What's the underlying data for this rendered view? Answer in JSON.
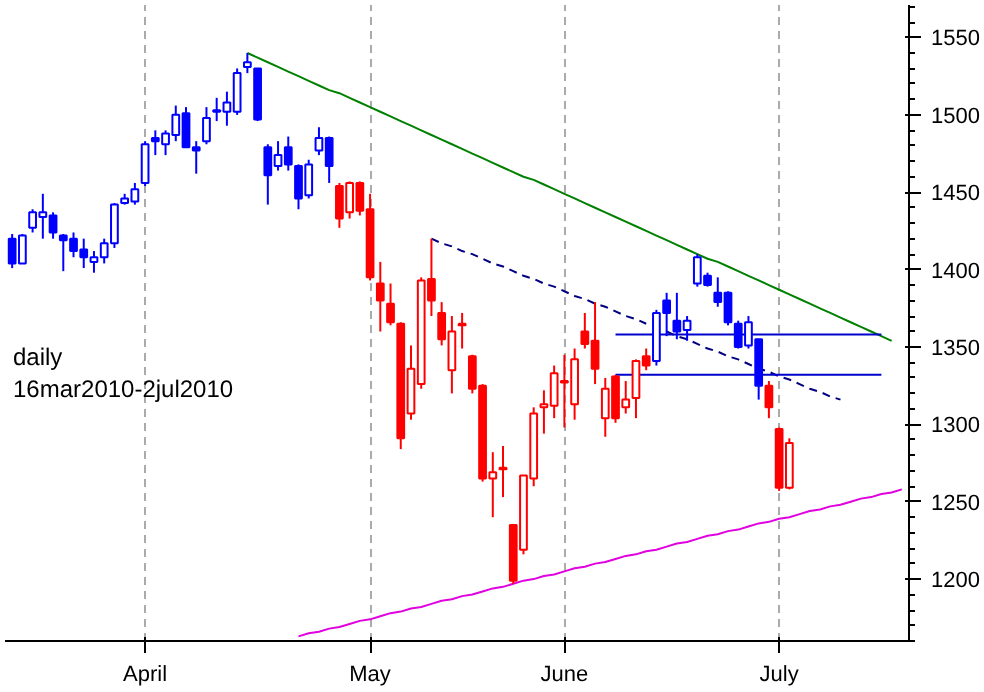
{
  "chart_data": {
    "type": "candlestick",
    "categories": [
      null,
      null,
      null,
      null,
      null,
      null,
      null,
      null,
      null,
      null,
      null,
      null,
      null,
      "April",
      null,
      null,
      null,
      null,
      null,
      null,
      null,
      null,
      null,
      null,
      null,
      null,
      null,
      null,
      null,
      null,
      null,
      null,
      null,
      null,
      null,
      "May",
      null,
      null,
      null,
      null,
      null,
      null,
      null,
      null,
      null,
      null,
      null,
      null,
      null,
      null,
      null,
      null,
      null,
      null,
      "June",
      null,
      null,
      null,
      null,
      null,
      null,
      null,
      null,
      null,
      null,
      null,
      null,
      null,
      null,
      null,
      null,
      null,
      null,
      null,
      null,
      "July",
      null,
      null,
      null,
      null,
      null,
      null,
      null,
      null,
      null,
      null,
      null,
      null
    ],
    "ohlc": [
      [
        1420,
        1423,
        1401,
        1404
      ],
      [
        1404,
        1423,
        1404,
        1422
      ],
      [
        1427,
        1439,
        1424,
        1437
      ],
      [
        1434,
        1449,
        1420,
        1437
      ],
      [
        1435,
        1437,
        1420,
        1424
      ],
      [
        1422,
        1423,
        1399,
        1419
      ],
      [
        1420,
        1424,
        1408,
        1412
      ],
      [
        1413,
        1420,
        1401,
        1408
      ],
      [
        1405,
        1412,
        1398,
        1408
      ],
      [
        1408,
        1420,
        1404,
        1417
      ],
      [
        1417,
        1443,
        1414,
        1442
      ],
      [
        1443,
        1449,
        1442,
        1446
      ],
      [
        1444,
        1456,
        1442,
        1452
      ],
      [
        1456,
        1483,
        1454,
        1481
      ],
      [
        1485,
        1490,
        1474,
        1483
      ],
      [
        1481,
        1490,
        1474,
        1488
      ],
      [
        1487,
        1506,
        1483,
        1500
      ],
      [
        1501,
        1505,
        1479,
        1479
      ],
      [
        1479,
        1483,
        1462,
        1477
      ],
      [
        1483,
        1505,
        1481,
        1498
      ],
      [
        1503,
        1511,
        1496,
        1502
      ],
      [
        1502,
        1515,
        1493,
        1508
      ],
      [
        1502,
        1530,
        1500,
        1527
      ],
      [
        1531,
        1540,
        1527,
        1534
      ],
      [
        1530,
        1530,
        1496,
        1497
      ],
      [
        1479,
        1481,
        1442,
        1461
      ],
      [
        1467,
        1483,
        1464,
        1474
      ],
      [
        1479,
        1486,
        1464,
        1468
      ],
      [
        1467,
        1468,
        1439,
        1446
      ],
      [
        1448,
        1471,
        1446,
        1468
      ],
      [
        1477,
        1492,
        1474,
        1485
      ],
      [
        1485,
        1486,
        1456,
        1467
      ],
      [
        1454,
        1456,
        1427,
        1433
      ],
      [
        1437,
        1457,
        1433,
        1456
      ],
      [
        1456,
        1457,
        1435,
        1438
      ],
      [
        1439,
        1449,
        1393,
        1395
      ],
      [
        1391,
        1405,
        1360,
        1380
      ],
      [
        1378,
        1391,
        1364,
        1366
      ],
      [
        1365,
        1366,
        1284,
        1291
      ],
      [
        1307,
        1351,
        1303,
        1336
      ],
      [
        1326,
        1395,
        1323,
        1393
      ],
      [
        1394,
        1420,
        1370,
        1380
      ],
      [
        1372,
        1379,
        1351,
        1355
      ],
      [
        1335,
        1370,
        1320,
        1360
      ],
      [
        1364,
        1372,
        1349,
        1365
      ],
      [
        1344,
        1345,
        1320,
        1323
      ],
      [
        1325,
        1326,
        1263,
        1265
      ],
      [
        1265,
        1282,
        1240,
        1269
      ],
      [
        1271,
        1286,
        1253,
        1272
      ],
      [
        1235,
        1235,
        1197,
        1199
      ],
      [
        1219,
        1267,
        1216,
        1267
      ],
      [
        1265,
        1311,
        1260,
        1307
      ],
      [
        1311,
        1322,
        1294,
        1313
      ],
      [
        1312,
        1338,
        1304,
        1333
      ],
      [
        1327,
        1345,
        1298,
        1328
      ],
      [
        1313,
        1349,
        1303,
        1342
      ],
      [
        1360,
        1372,
        1349,
        1352
      ],
      [
        1354,
        1379,
        1326,
        1336
      ],
      [
        1304,
        1330,
        1292,
        1323
      ],
      [
        1331,
        1332,
        1301,
        1304
      ],
      [
        1311,
        1328,
        1307,
        1316
      ],
      [
        1317,
        1342,
        1304,
        1341
      ],
      [
        1344,
        1349,
        1335,
        1338
      ],
      [
        1341,
        1374,
        1338,
        1372
      ],
      [
        1380,
        1385,
        1357,
        1372
      ],
      [
        1367,
        1385,
        1355,
        1360
      ],
      [
        1361,
        1370,
        1354,
        1367
      ],
      [
        1391,
        1410,
        1389,
        1408
      ],
      [
        1396,
        1398,
        1389,
        1390
      ],
      [
        1385,
        1395,
        1376,
        1379
      ],
      [
        1385,
        1386,
        1364,
        1366
      ],
      [
        1365,
        1367,
        1349,
        1350
      ],
      [
        1351,
        1370,
        1349,
        1366
      ],
      [
        1355,
        1355,
        1316,
        1325
      ],
      [
        1325,
        1328,
        1304,
        1311
      ],
      [
        1297,
        1298,
        1257,
        1259
      ],
      [
        1259,
        1291,
        1258,
        1288
      ],
      null,
      null,
      null,
      null,
      null,
      null,
      null,
      null,
      null,
      null,
      null
    ],
    "colors": [
      "#0000ff",
      "#0000ff",
      "#0000ff",
      "#0000ff",
      "#0000ff",
      "#0000ff",
      "#0000ff",
      "#0000ff",
      "#0000ff",
      "#0000ff",
      "#0000ff",
      "#0000ff",
      "#0000ff",
      "#0000ff",
      "#0000ff",
      "#0000ff",
      "#0000ff",
      "#0000ff",
      "#0000ff",
      "#0000ff",
      "#0000ff",
      "#0000ff",
      "#0000ff",
      "#0000ff",
      "#0000ff",
      "#0000ff",
      "#0000ff",
      "#0000ff",
      "#0000ff",
      "#0000ff",
      "#0000ff",
      "#0000ff",
      "#ff0000",
      "#ff0000",
      "#ff0000",
      "#ff0000",
      "#ff0000",
      "#ff0000",
      "#ff0000",
      "#ff0000",
      "#ff0000",
      "#ff0000",
      "#ff0000",
      "#ff0000",
      "#ff0000",
      "#ff0000",
      "#ff0000",
      "#ff0000",
      "#ff0000",
      "#ff0000",
      "#ff0000",
      "#ff0000",
      "#ff0000",
      "#ff0000",
      "#ff0000",
      "#ff0000",
      "#ff0000",
      "#ff0000",
      "#ff0000",
      "#ff0000",
      "#ff0000",
      "#ff0000",
      "#ff0000",
      "#0000ff",
      "#0000ff",
      "#0000ff",
      "#0000ff",
      "#0000ff",
      "#0000ff",
      "#0000ff",
      "#0000ff",
      "#0000ff",
      "#0000ff",
      "#0000ff",
      "#ff0000",
      "#ff0000",
      "#ff0000",
      null,
      null,
      null,
      null,
      null,
      null,
      null,
      null,
      null,
      null,
      null
    ],
    "series": [
      {
        "type": "line",
        "color": "#008000",
        "values": [
          null,
          null,
          null,
          null,
          null,
          null,
          null,
          null,
          null,
          null,
          null,
          null,
          null,
          null,
          null,
          null,
          null,
          null,
          null,
          null,
          null,
          null,
          null,
          1540,
          1537,
          1534,
          1531,
          1528,
          1525,
          1522,
          1519,
          1516,
          1514,
          1511,
          1508,
          1505,
          1502,
          1499,
          1496,
          1493,
          1490,
          1487,
          1484,
          1481,
          1478,
          1475,
          1472,
          1469,
          1466,
          1463,
          1460,
          1458,
          1455,
          1452,
          1449,
          1446,
          1443,
          1440,
          1437,
          1434,
          1431,
          1428,
          1425,
          1422,
          1419,
          1416,
          1413,
          1410,
          1407,
          1405,
          1402,
          1399,
          1396,
          1393,
          1390,
          1387,
          1384,
          1381,
          1378,
          1375,
          1372,
          1369,
          1366,
          1363,
          1360,
          1357,
          1354,
          null
        ]
      },
      {
        "type": "line",
        "color": "#000080",
        "line_style": "dashed",
        "values": [
          null,
          null,
          null,
          null,
          null,
          null,
          null,
          null,
          null,
          null,
          null,
          null,
          null,
          null,
          null,
          null,
          null,
          null,
          null,
          null,
          null,
          null,
          null,
          null,
          null,
          null,
          null,
          null,
          null,
          null,
          null,
          null,
          null,
          null,
          null,
          null,
          null,
          null,
          null,
          null,
          null,
          1420,
          1417,
          1415,
          1412,
          1410,
          1407,
          1404,
          1402,
          1399,
          1396,
          1394,
          1391,
          1389,
          1386,
          1383,
          1381,
          1378,
          1376,
          1373,
          1370,
          1368,
          1365,
          null,
          1360,
          1357,
          1355,
          1352,
          1349,
          1347,
          1344,
          1342,
          1339,
          1336,
          1334,
          1331,
          1329,
          1326,
          1323,
          1321,
          1318,
          1316,
          null,
          null,
          null,
          null,
          null,
          null
        ]
      },
      {
        "type": "line",
        "color": "#e000e0",
        "values": [
          null,
          null,
          null,
          null,
          null,
          null,
          null,
          null,
          null,
          null,
          null,
          null,
          null,
          null,
          null,
          null,
          null,
          null,
          null,
          null,
          null,
          null,
          null,
          null,
          null,
          null,
          null,
          null,
          1163,
          1165,
          1166,
          1168,
          1169,
          1171,
          1173,
          1174,
          1176,
          1178,
          1179,
          1181,
          1182,
          1184,
          1186,
          1187,
          1189,
          1190,
          1192,
          1194,
          1195,
          1197,
          1199,
          1200,
          1202,
          1203,
          1205,
          1207,
          1208,
          1210,
          1211,
          1213,
          1215,
          1216,
          1218,
          1219,
          1221,
          1223,
          1224,
          1226,
          1228,
          1229,
          1231,
          1232,
          1234,
          1236,
          1237,
          1239,
          1240,
          1242,
          1244,
          1245,
          1247,
          1248,
          1250,
          1252,
          1253,
          1255,
          1256,
          1258
        ]
      },
      {
        "type": "line",
        "color": "#0000cc",
        "values": [
          null,
          null,
          null,
          null,
          null,
          null,
          null,
          null,
          null,
          null,
          null,
          null,
          null,
          null,
          null,
          null,
          null,
          null,
          null,
          null,
          null,
          null,
          null,
          null,
          null,
          null,
          null,
          null,
          null,
          null,
          null,
          null,
          null,
          null,
          null,
          null,
          null,
          null,
          null,
          null,
          null,
          null,
          null,
          null,
          null,
          null,
          null,
          null,
          null,
          null,
          null,
          null,
          null,
          null,
          null,
          null,
          null,
          null,
          null,
          1358,
          1358,
          1358,
          1358,
          1358,
          1358,
          1358,
          1358,
          1358,
          1358,
          1358,
          1358,
          1358,
          1358,
          1358,
          1358,
          1358,
          1358,
          1358,
          1358,
          1358,
          1358,
          1358,
          1358,
          1358,
          1358,
          1358,
          null,
          null
        ]
      },
      {
        "type": "line",
        "color": "#0000cc",
        "values": [
          null,
          null,
          null,
          null,
          null,
          null,
          null,
          null,
          null,
          null,
          null,
          null,
          null,
          null,
          null,
          null,
          null,
          null,
          null,
          null,
          null,
          null,
          null,
          null,
          null,
          null,
          null,
          null,
          null,
          null,
          null,
          null,
          null,
          null,
          null,
          null,
          null,
          null,
          null,
          null,
          null,
          null,
          null,
          null,
          null,
          null,
          null,
          null,
          null,
          null,
          null,
          null,
          null,
          null,
          null,
          null,
          null,
          null,
          null,
          1332,
          1332,
          1332,
          1332,
          1332,
          1332,
          1332,
          1332,
          1332,
          1332,
          1332,
          1332,
          1332,
          1332,
          1332,
          1332,
          1332,
          1332,
          1332,
          1332,
          1332,
          1332,
          1332,
          1332,
          1332,
          1332,
          1332,
          null,
          null
        ]
      }
    ],
    "annotations": [
      "daily",
      "16mar2010-2jul2010"
    ],
    "ylim": [
      1160,
      1571
    ],
    "yticks": [
      1200,
      1250,
      1300,
      1350,
      1400,
      1450,
      1500,
      1550
    ],
    "grid": "x"
  }
}
